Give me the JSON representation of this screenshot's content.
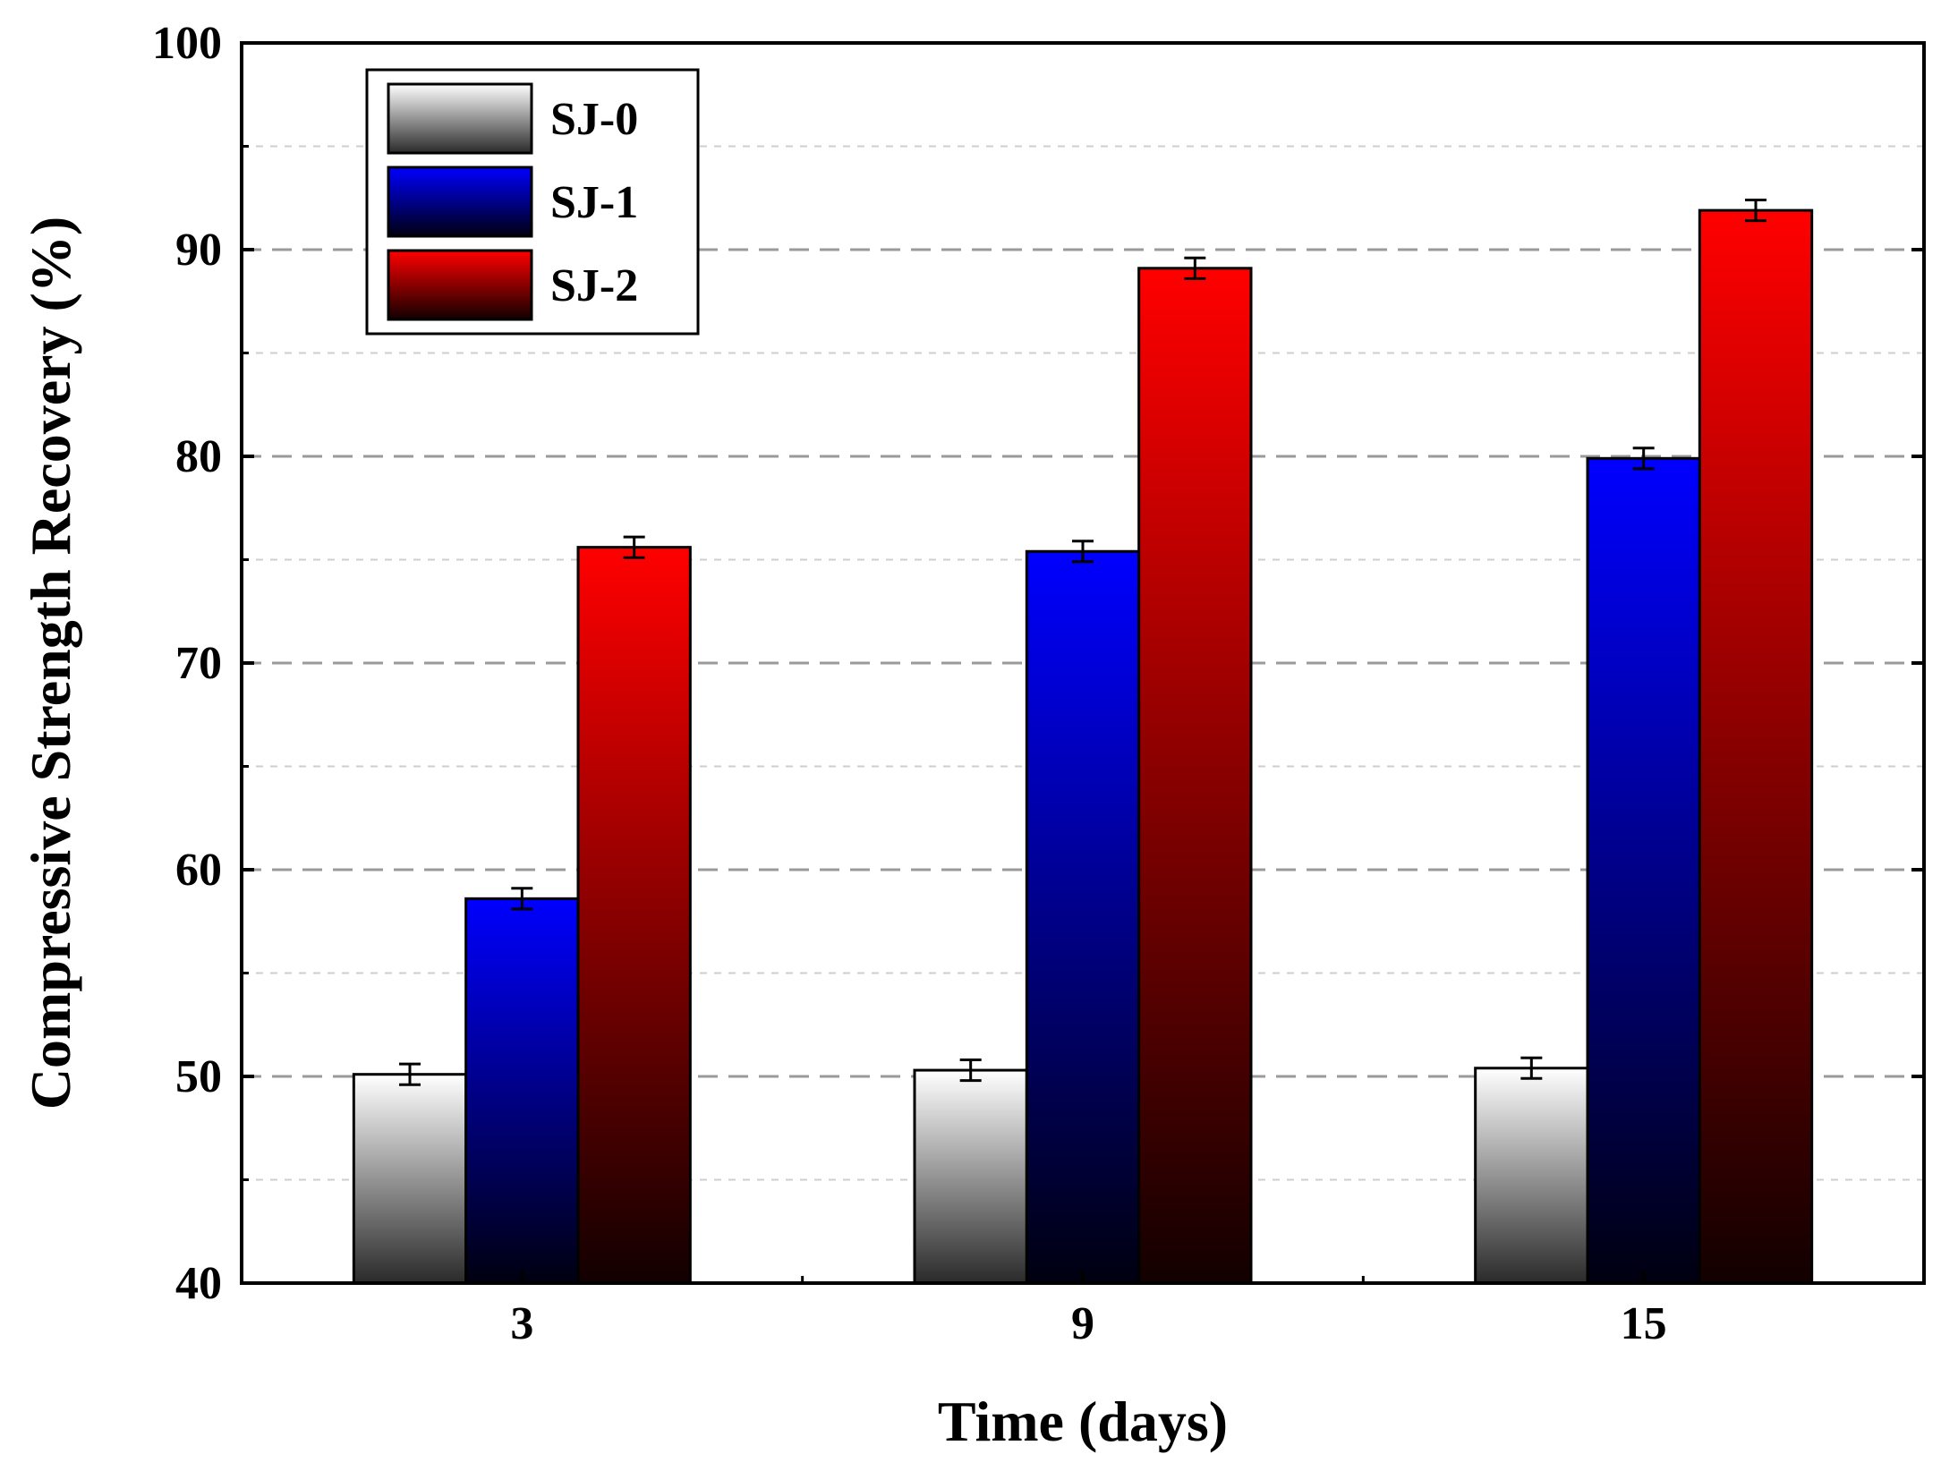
{
  "chart_data": {
    "type": "bar",
    "xlabel": "Time (days)",
    "ylabel": "Compressive Strength Recovery  (%)",
    "ylim": [
      40,
      100
    ],
    "yticks": [
      40,
      50,
      60,
      70,
      80,
      90,
      100
    ],
    "minor_gridlines": [
      45,
      55,
      65,
      75,
      85,
      95
    ],
    "grid": true,
    "legend_position": "top-left",
    "categories": [
      "3",
      "9",
      "15"
    ],
    "series": [
      {
        "name": "SJ-0",
        "values": [
          50.1,
          50.3,
          50.4
        ],
        "errors": [
          0.5,
          0.5,
          0.5
        ],
        "color_top": "#ffffff",
        "color_bottom": "#2a2a2a"
      },
      {
        "name": "SJ-1",
        "values": [
          58.6,
          75.4,
          79.9
        ],
        "errors": [
          0.5,
          0.5,
          0.5
        ],
        "color_top": "#0000ff",
        "color_bottom": "#000010"
      },
      {
        "name": "SJ-2",
        "values": [
          75.6,
          89.1,
          91.9
        ],
        "errors": [
          0.5,
          0.5,
          0.5
        ],
        "color_top": "#ff0000",
        "color_bottom": "#120000"
      }
    ]
  }
}
